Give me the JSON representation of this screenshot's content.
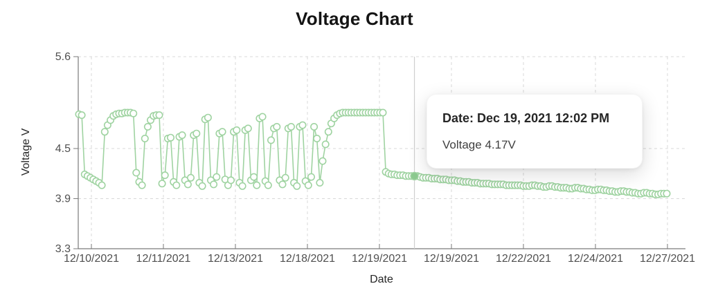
{
  "title": "Voltage Chart",
  "axes": {
    "y_label": "Voltage V",
    "x_label": "Date"
  },
  "tooltip": {
    "date_line": "Date: Dec 19, 2021 12:02 PM",
    "value_line": "Voltage 4.17V"
  },
  "colors": {
    "series": "#9fd3a1",
    "marker_fill": "#ffffff",
    "selected_fill": "#8cc98f",
    "grid": "#d8d8d8",
    "axis": "#7a7a7a",
    "tick_text": "#4f4f4f",
    "crosshair": "#cfcfcf",
    "title_text": "#141414"
  },
  "chart_data": {
    "type": "line",
    "title": "Voltage Chart",
    "xlabel": "Date",
    "ylabel": "Voltage V",
    "series_name": "Voltage",
    "unit": "V",
    "ylim": [
      3.3,
      5.6
    ],
    "y_ticks": [
      5.6,
      4.5,
      3.9,
      3.3
    ],
    "x_tick_labels": [
      "12/10/2021",
      "12/11/2021",
      "12/13/2021",
      "12/18/2021",
      "12/19/2021",
      "12/19/2021",
      "12/22/2021",
      "12/24/2021",
      "12/27/2021"
    ],
    "grid": "dashed",
    "legend": "none",
    "selected_point": {
      "index": 117,
      "date": "Dec 19, 2021 12:02 PM",
      "voltage": 4.17
    },
    "values": [
      4.91,
      4.9,
      4.19,
      4.17,
      4.15,
      4.13,
      4.11,
      4.09,
      4.06,
      4.7,
      4.78,
      4.84,
      4.89,
      4.91,
      4.92,
      4.92,
      4.93,
      4.93,
      4.93,
      4.92,
      4.21,
      4.1,
      4.06,
      4.62,
      4.76,
      4.84,
      4.89,
      4.9,
      4.9,
      4.08,
      4.18,
      4.62,
      4.63,
      4.1,
      4.06,
      4.64,
      4.66,
      4.12,
      4.07,
      4.15,
      4.66,
      4.68,
      4.09,
      4.05,
      4.85,
      4.87,
      4.12,
      4.07,
      4.16,
      4.68,
      4.7,
      4.13,
      4.06,
      4.12,
      4.7,
      4.72,
      4.09,
      4.05,
      4.72,
      4.74,
      4.12,
      4.16,
      4.06,
      4.86,
      4.88,
      4.11,
      4.06,
      4.6,
      4.74,
      4.76,
      4.12,
      4.07,
      4.15,
      4.74,
      4.76,
      4.09,
      4.05,
      4.76,
      4.78,
      4.11,
      4.06,
      4.16,
      4.76,
      4.62,
      4.09,
      4.35,
      4.55,
      4.7,
      4.8,
      4.86,
      4.9,
      4.92,
      4.93,
      4.93,
      4.93,
      4.93,
      4.93,
      4.93,
      4.93,
      4.93,
      4.93,
      4.93,
      4.93,
      4.93,
      4.93,
      4.93,
      4.93,
      4.22,
      4.2,
      4.19,
      4.19,
      4.18,
      4.18,
      4.18,
      4.17,
      4.17,
      4.17,
      4.17,
      4.17,
      4.16,
      4.15,
      4.15,
      4.15,
      4.14,
      4.14,
      4.14,
      4.13,
      4.13,
      4.13,
      4.12,
      4.12,
      4.12,
      4.11,
      4.11,
      4.1,
      4.1,
      4.1,
      4.09,
      4.09,
      4.09,
      4.08,
      4.08,
      4.08,
      4.08,
      4.07,
      4.07,
      4.07,
      4.07,
      4.07,
      4.06,
      4.06,
      4.06,
      4.06,
      4.06,
      4.06,
      4.05,
      4.05,
      4.05,
      4.06,
      4.06,
      4.05,
      4.05,
      4.04,
      4.04,
      4.05,
      4.05,
      4.04,
      4.04,
      4.03,
      4.03,
      4.03,
      4.02,
      4.02,
      4.03,
      4.03,
      4.02,
      4.02,
      4.01,
      4.01,
      4.0,
      4.0,
      4.01,
      4.01,
      4.0,
      4.0,
      3.99,
      3.99,
      3.98,
      3.98,
      3.99,
      3.99,
      3.98,
      3.98,
      3.97,
      3.97,
      3.96,
      3.96,
      3.97,
      3.97,
      3.96,
      3.96,
      3.95,
      3.95,
      3.96,
      3.96,
      3.96
    ]
  }
}
